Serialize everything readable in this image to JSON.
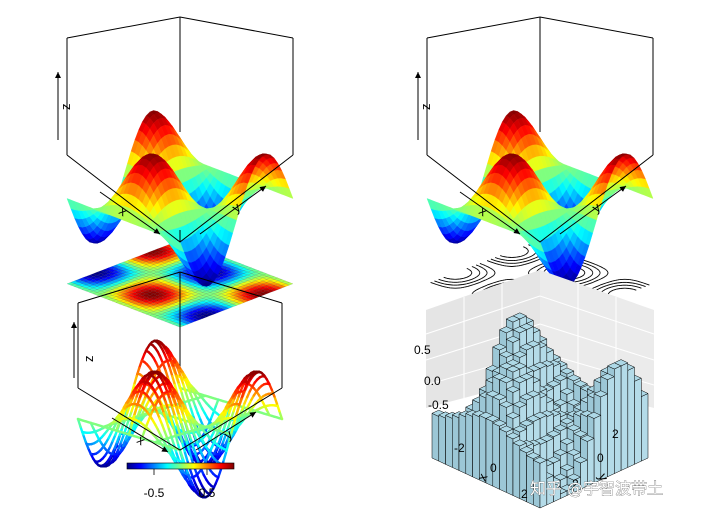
{
  "chart_data": [
    {
      "type": "surface",
      "panel": "top-left",
      "surface_style": "colored facets",
      "projection_below": "colored image",
      "xlabel": "x",
      "ylabel": "y",
      "zlabel": "z",
      "function": "z = sin(x) * cos(y)",
      "grid_size": [
        30,
        30
      ],
      "x_range": [
        -3.14,
        3.14
      ],
      "y_range": [
        -3.14,
        3.14
      ],
      "z_range": [
        -1,
        1
      ]
    },
    {
      "type": "surface",
      "panel": "top-right",
      "surface_style": "colored facets",
      "projection_below": "contour lines",
      "xlabel": "x",
      "ylabel": "y",
      "zlabel": "z",
      "function": "z = sin(x) * cos(y)",
      "contour_levels": [
        -0.8,
        -0.6,
        -0.4,
        -0.2,
        0.2,
        0.4,
        0.6,
        0.8
      ]
    },
    {
      "type": "surface",
      "panel": "bottom-left",
      "surface_style": "colored ribbons",
      "xlabel": "x",
      "ylabel": "y",
      "zlabel": "z",
      "function": "z = sin(x) * cos(y)",
      "colorbar": {
        "ticks": [
          -0.5,
          0.5
        ],
        "tick_labels": [
          "-0.5",
          "0.5"
        ],
        "range": [
          -1,
          1
        ]
      }
    },
    {
      "type": "histogram3d",
      "panel": "bottom-right",
      "bar_color": "#add8e6",
      "background": "grey panels with white grid",
      "xlabel": "x",
      "ylabel": "y",
      "zlabel": "",
      "function": "z = sin(x) * cos(y)",
      "z_ticks": [
        "0.5",
        "0.0",
        "-0.5"
      ],
      "x_ticks": [
        "-2",
        "0",
        "2"
      ],
      "y_ticks": [
        "-2",
        "0",
        "2"
      ]
    }
  ],
  "colors": {
    "jet": [
      "#00007f",
      "#0000ff",
      "#007fff",
      "#00ffff",
      "#7fff7f",
      "#ffff00",
      "#ff7f00",
      "#ff0000",
      "#7f0000"
    ],
    "bar_fill": "#add8e6",
    "panel_grey": "#e5e5e5"
  },
  "watermark": "知乎 @宇智波带土"
}
